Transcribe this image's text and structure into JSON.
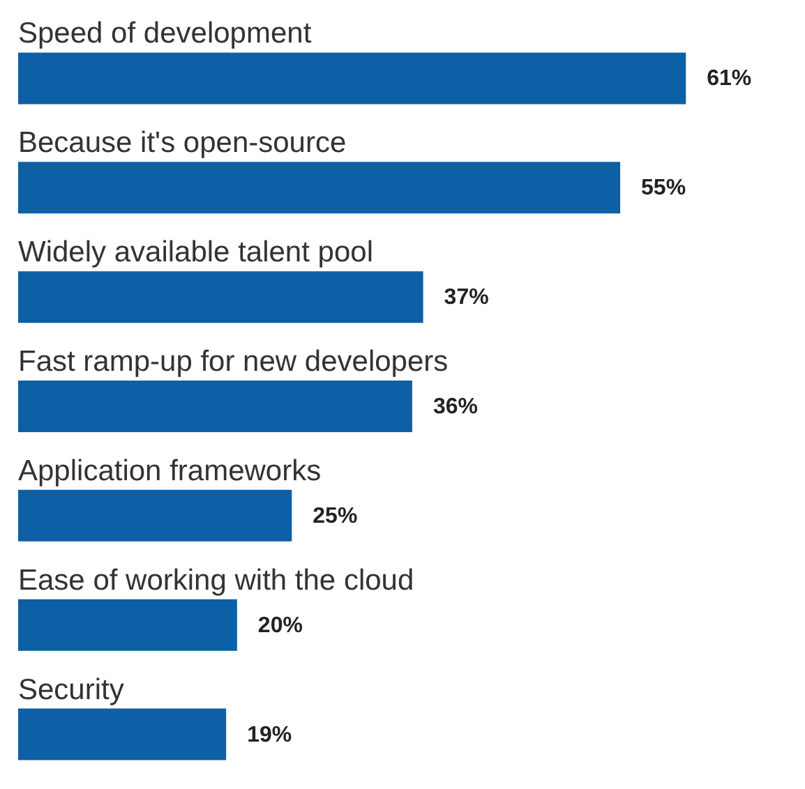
{
  "chart_data": {
    "type": "bar",
    "orientation": "horizontal",
    "categories": [
      "Speed of development",
      "Because it's open-source",
      "Widely available talent pool",
      "Fast ramp-up for new developers",
      "Application frameworks",
      "Ease of working with the cloud",
      "Security"
    ],
    "values": [
      61,
      55,
      37,
      36,
      25,
      20,
      19
    ],
    "value_labels": [
      "61%",
      "55%",
      "37%",
      "36%",
      "25%",
      "20%",
      "19%"
    ],
    "color": "#0d5fa6"
  }
}
